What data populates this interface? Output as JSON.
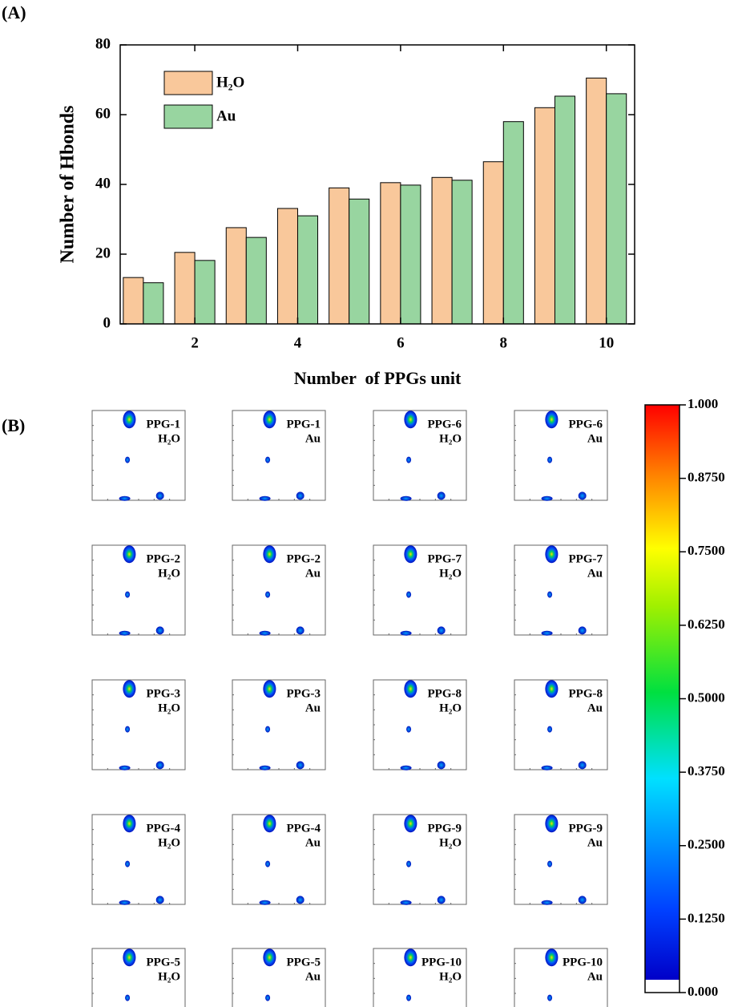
{
  "panel_a_label": "(A)",
  "chart_data": {
    "type": "bar",
    "xlabel": "Number  of PPGs unit",
    "ylabel": "Number of Hbonds",
    "x": [
      1,
      2,
      3,
      4,
      5,
      6,
      7,
      8,
      9,
      10
    ],
    "series": [
      {
        "name": "H₂O",
        "color": "#f9c89b",
        "values": [
          13.3,
          20.5,
          27.6,
          33.1,
          39.0,
          40.5,
          42.0,
          46.5,
          62.0,
          70.5
        ]
      },
      {
        "name": "Au",
        "color": "#98d5a0",
        "values": [
          11.8,
          18.2,
          24.8,
          31.0,
          35.8,
          39.8,
          41.2,
          58.0,
          65.3,
          66.0
        ]
      }
    ],
    "xlim": [
      0.55,
      10.55
    ],
    "xticks": [
      2,
      4,
      6,
      8,
      10
    ],
    "ylim": [
      0,
      80
    ],
    "yticks": [
      0,
      20,
      40,
      60,
      80
    ],
    "legend": "upper-left"
  },
  "panel_b": {
    "label": "(B)",
    "plots": [
      {
        "name": "PPG-1",
        "medium": "H₂O"
      },
      {
        "name": "PPG-2",
        "medium": "H₂O"
      },
      {
        "name": "PPG-3",
        "medium": "H₂O"
      },
      {
        "name": "PPG-4",
        "medium": "H₂O"
      },
      {
        "name": "PPG-5",
        "medium": "H₂O"
      },
      {
        "name": "PPG-1",
        "medium": "Au"
      },
      {
        "name": "PPG-2",
        "medium": "Au"
      },
      {
        "name": "PPG-3",
        "medium": "Au"
      },
      {
        "name": "PPG-4",
        "medium": "Au"
      },
      {
        "name": "PPG-5",
        "medium": "Au"
      },
      {
        "name": "PPG-6",
        "medium": "H₂O"
      },
      {
        "name": "PPG-7",
        "medium": "H₂O"
      },
      {
        "name": "PPG-8",
        "medium": "H₂O"
      },
      {
        "name": "PPG-9",
        "medium": "H₂O"
      },
      {
        "name": "PPG-10",
        "medium": "H₂O"
      },
      {
        "name": "PPG-6",
        "medium": "Au"
      },
      {
        "name": "PPG-7",
        "medium": "Au"
      },
      {
        "name": "PPG-8",
        "medium": "Au"
      },
      {
        "name": "PPG-9",
        "medium": "Au"
      },
      {
        "name": "PPG-10",
        "medium": "Au"
      }
    ],
    "colorbar": {
      "lim": [
        0,
        1
      ],
      "ticks": [
        {
          "value": 0,
          "label": "0.000"
        },
        {
          "value": 0.125,
          "label": "0.1250"
        },
        {
          "value": 0.25,
          "label": "0.2500"
        },
        {
          "value": 0.375,
          "label": "0.3750"
        },
        {
          "value": 0.5,
          "label": "0.5000"
        },
        {
          "value": 0.625,
          "label": "0.6250"
        },
        {
          "value": 0.75,
          "label": "0.7500"
        },
        {
          "value": 0.875,
          "label": "0.8750"
        },
        {
          "value": 1,
          "label": "1.000"
        }
      ]
    }
  }
}
